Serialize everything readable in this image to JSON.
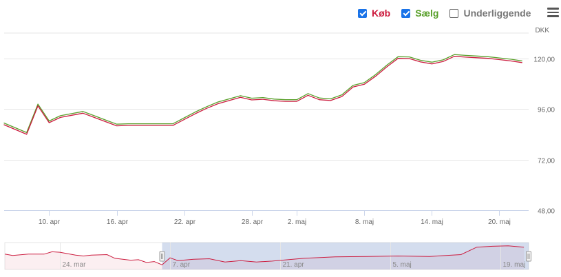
{
  "legend": {
    "items": [
      {
        "label": "Køb",
        "checked": true,
        "color": "#cc1c3f"
      },
      {
        "label": "Sælg",
        "checked": true,
        "color": "#5aa02c"
      },
      {
        "label": "Underliggende",
        "checked": false,
        "color": "#777777"
      }
    ]
  },
  "menu_icon": "hamburger-menu-icon",
  "chart_data": {
    "type": "line",
    "currency": "DKK",
    "ylim": [
      48,
      132
    ],
    "y_ticks": [
      "48,00",
      "72,00",
      "96,00",
      "120,00"
    ],
    "y_tick_values": [
      48,
      72,
      96,
      120
    ],
    "x_ticks": [
      "10. apr",
      "16. apr",
      "22. apr",
      "28. apr",
      "2. maj",
      "8. maj",
      "14. maj",
      "20. maj"
    ],
    "x_tick_days": [
      10,
      16,
      22,
      28,
      32,
      38,
      44,
      50
    ],
    "x": [
      6,
      8,
      9,
      10,
      11,
      12,
      13,
      14,
      15,
      16,
      17,
      18,
      19,
      20,
      21,
      22,
      23,
      24,
      25,
      26,
      27,
      28,
      29,
      30,
      31,
      32,
      33,
      34,
      35,
      36,
      37,
      38,
      39,
      40,
      41,
      42,
      43,
      44,
      45,
      46,
      47,
      48,
      49,
      50,
      51,
      52
    ],
    "series": [
      {
        "name": "Køb",
        "color": "#cc1c3f",
        "values": [
          88.5,
          84.0,
          97.5,
          89.5,
          92.0,
          93.0,
          94.0,
          92.0,
          90.0,
          88.0,
          88.2,
          88.2,
          88.2,
          88.2,
          88.2,
          91.0,
          93.8,
          96.3,
          98.5,
          100.0,
          101.5,
          100.3,
          100.6,
          99.9,
          99.6,
          99.6,
          102.5,
          100.4,
          100.0,
          101.9,
          106.4,
          107.7,
          111.5,
          116.0,
          120.0,
          119.9,
          118.3,
          117.4,
          118.5,
          121.0,
          120.6,
          120.3,
          120.0,
          119.4,
          118.8,
          118.0
        ]
      },
      {
        "name": "Sælg",
        "color": "#5aa02c",
        "values": [
          89.3,
          84.8,
          98.3,
          90.3,
          92.8,
          93.8,
          94.8,
          92.8,
          90.8,
          88.8,
          89.0,
          89.0,
          89.0,
          89.0,
          89.0,
          91.8,
          94.6,
          97.1,
          99.3,
          100.8,
          102.3,
          101.1,
          101.4,
          100.7,
          100.4,
          100.4,
          103.3,
          101.2,
          100.8,
          102.7,
          107.2,
          108.5,
          112.3,
          116.8,
          120.8,
          120.7,
          119.1,
          118.2,
          119.3,
          121.8,
          121.4,
          121.1,
          120.8,
          120.2,
          119.6,
          118.8
        ]
      }
    ],
    "navigator": {
      "x_ticks": [
        "24. mar",
        "7. apr",
        "21. apr",
        "5. maj",
        "19. maj"
      ],
      "x_tick_days": [
        -7,
        7,
        21,
        35,
        49
      ],
      "x": [
        -14,
        -13,
        -11,
        -9,
        -8,
        -7,
        -5,
        -4,
        -3,
        -1,
        0,
        1,
        2,
        3,
        4,
        5,
        6,
        7,
        8,
        10,
        12,
        14,
        16,
        18,
        20,
        24,
        28,
        32,
        36,
        40,
        44,
        46,
        48,
        50,
        52
      ],
      "values": [
        103,
        100,
        103,
        103,
        108,
        107,
        101,
        99,
        101,
        102,
        94,
        92,
        90,
        91,
        85,
        87,
        80,
        95,
        89,
        92,
        93,
        86,
        89,
        86,
        88,
        94,
        97,
        98,
        99,
        98,
        102,
        118,
        120,
        121,
        118
      ]
    }
  }
}
